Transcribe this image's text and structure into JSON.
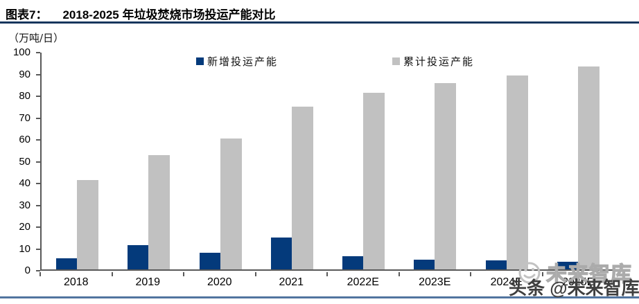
{
  "header": {
    "label": "图表7：",
    "title": "2018-2025 年垃圾焚烧市场投运产能对比"
  },
  "chart_data": {
    "type": "bar",
    "title": "图表7： 2018-2025 年垃圾焚烧市场投运产能对比",
    "unit_label": "（万吨/日）",
    "categories": [
      "2018",
      "2019",
      "2020",
      "2021",
      "2022E",
      "2023E",
      "2024E",
      "2025E"
    ],
    "series": [
      {
        "name": "新增投运产能",
        "color": "#043a7b",
        "values": [
          5,
          11,
          7.5,
          14.5,
          6,
          4.5,
          4,
          3.5
        ]
      },
      {
        "name": "累计投运产能",
        "color": "#c1c1c1",
        "values": [
          41,
          52.5,
          60,
          74.5,
          81,
          85.5,
          89,
          93
        ]
      }
    ],
    "xlabel": "",
    "ylabel": "万吨/日",
    "ylim": [
      0,
      100
    ],
    "yticks": [
      0,
      10,
      20,
      30,
      40,
      50,
      60,
      70,
      80,
      90,
      100
    ],
    "grid": false,
    "legend_position": "top-center"
  },
  "watermark": {
    "outline_text": "未来智库",
    "main_text": "头条 @未来智库",
    "smiley_icon": "smiley-face-icon"
  },
  "colors": {
    "bar_new": "#043a7b",
    "bar_cumulative": "#c1c1c1",
    "axis": "#595959",
    "title_underline": "#17365d",
    "bottom_rule": "#51749f",
    "watermark_dark": "#3f3f3f",
    "watermark_light": "#ababab"
  }
}
